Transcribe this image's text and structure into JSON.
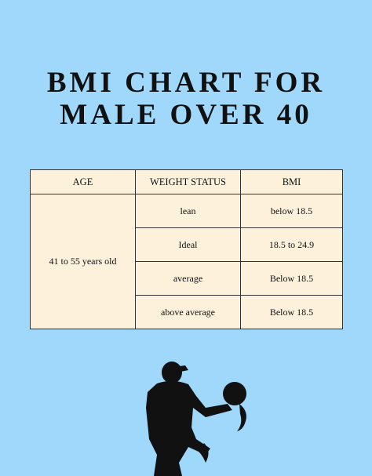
{
  "title": [
    "BMI CHART FOR",
    "MALE OVER 40"
  ],
  "table": {
    "headers": [
      "AGE",
      "WEIGHT STATUS",
      "BMI"
    ],
    "age": "41 to 55 years old",
    "rows": [
      [
        "lean",
        "below 18.5"
      ],
      [
        "Ideal",
        "18.5 to 24.9"
      ],
      [
        "average",
        "Below 18.5"
      ],
      [
        "above average",
        "Below 18.5"
      ]
    ]
  }
}
